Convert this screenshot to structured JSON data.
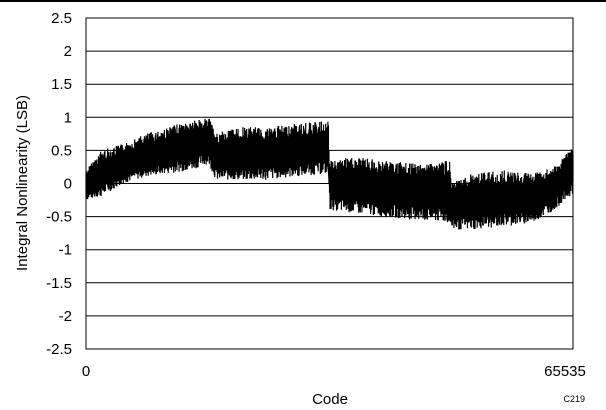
{
  "chart_data": {
    "type": "line",
    "xlabel": "Code",
    "ylabel": "Integral Nonlinearity (LSB)",
    "xlim": [
      0,
      65535
    ],
    "ylim": [
      -2.5,
      2.5
    ],
    "x_ticks": [
      "0",
      "65535"
    ],
    "y_ticks": [
      "2.5",
      "2",
      "1.5",
      "1",
      "0.5",
      "0",
      "-0.5",
      "-1",
      "-1.5",
      "-2",
      "-2.5"
    ],
    "grid": "horizontal",
    "figure_code": "C219",
    "series": [
      {
        "color": "#000000",
        "band": [
          {
            "x": 0,
            "lo": -0.25,
            "hi": 0.2
          },
          {
            "x": 2000,
            "lo": -0.2,
            "hi": 0.5
          },
          {
            "x": 5000,
            "lo": 0.0,
            "hi": 0.6
          },
          {
            "x": 8000,
            "lo": 0.1,
            "hi": 0.75
          },
          {
            "x": 11000,
            "lo": 0.15,
            "hi": 0.85
          },
          {
            "x": 14000,
            "lo": 0.2,
            "hi": 0.95
          },
          {
            "x": 16500,
            "lo": 0.3,
            "hi": 1.0
          },
          {
            "x": 17500,
            "lo": 0.05,
            "hi": 0.75
          },
          {
            "x": 20000,
            "lo": 0.05,
            "hi": 0.85
          },
          {
            "x": 24000,
            "lo": 0.05,
            "hi": 0.85
          },
          {
            "x": 28000,
            "lo": 0.1,
            "hi": 0.9
          },
          {
            "x": 32600,
            "lo": 0.15,
            "hi": 0.95
          },
          {
            "x": 32800,
            "lo": -0.4,
            "hi": 0.35
          },
          {
            "x": 36000,
            "lo": -0.45,
            "hi": 0.4
          },
          {
            "x": 40000,
            "lo": -0.5,
            "hi": 0.35
          },
          {
            "x": 44000,
            "lo": -0.55,
            "hi": 0.3
          },
          {
            "x": 49000,
            "lo": -0.6,
            "hi": 0.35
          },
          {
            "x": 49200,
            "lo": -0.7,
            "hi": 0.0
          },
          {
            "x": 52000,
            "lo": -0.7,
            "hi": 0.15
          },
          {
            "x": 56000,
            "lo": -0.65,
            "hi": 0.2
          },
          {
            "x": 60000,
            "lo": -0.6,
            "hi": 0.15
          },
          {
            "x": 63000,
            "lo": -0.4,
            "hi": 0.25
          },
          {
            "x": 65535,
            "lo": -0.15,
            "hi": 0.55
          }
        ]
      }
    ]
  }
}
